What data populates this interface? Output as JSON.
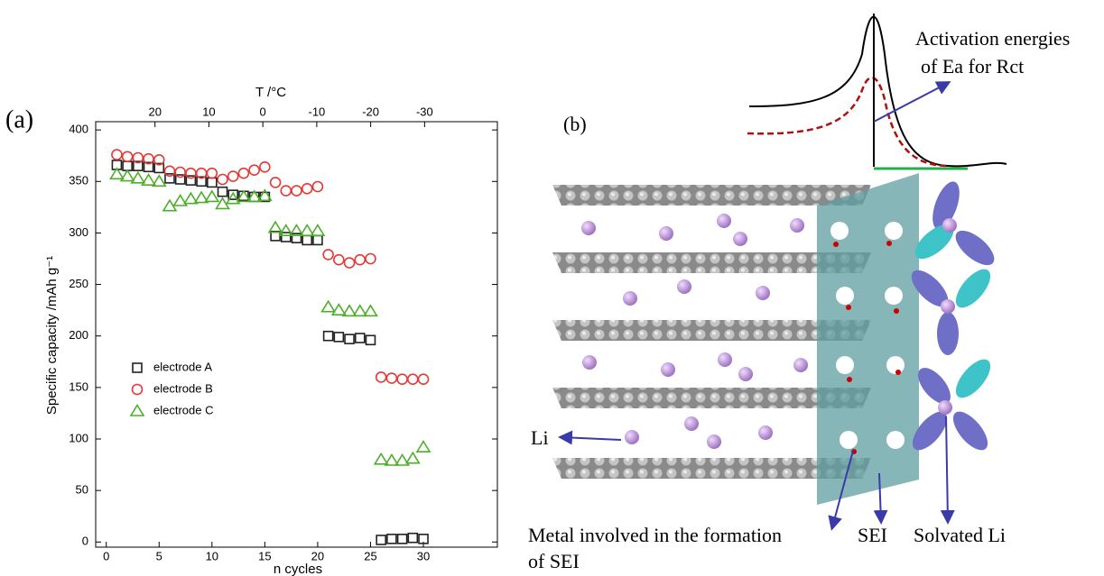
{
  "chart_data": {
    "type": "scatter",
    "panel_label": "(a)",
    "x_label": "n cycles",
    "y_label": "Specific capacity /mAh g⁻¹",
    "x2_label": "T /°C",
    "x": [
      1,
      2,
      3,
      4,
      5,
      6,
      7,
      8,
      9,
      10,
      11,
      12,
      13,
      14,
      15,
      16,
      17,
      18,
      19,
      20,
      21,
      22,
      23,
      24,
      25,
      26,
      27,
      28,
      29,
      30
    ],
    "series": [
      {
        "name": "electrode A",
        "color": "#222222",
        "marker": "square",
        "values": [
          366,
          365,
          365,
          364,
          363,
          353,
          352,
          351,
          350,
          349,
          340,
          337,
          336,
          335,
          335,
          297,
          296,
          295,
          293,
          293,
          200,
          199,
          197,
          198,
          196,
          2,
          3,
          3,
          4,
          3
        ]
      },
      {
        "name": "electrode B",
        "color": "#e53935",
        "marker": "circle",
        "values": [
          376,
          374,
          373,
          372,
          371,
          360,
          359,
          358,
          358,
          358,
          352,
          355,
          358,
          361,
          364,
          349,
          341,
          341,
          343,
          345,
          279,
          274,
          271,
          274,
          275,
          160,
          159,
          158,
          158,
          158
        ]
      },
      {
        "name": "electrode C",
        "color": "#4caf2a",
        "marker": "triangle",
        "values": [
          357,
          355,
          353,
          351,
          350,
          326,
          331,
          333,
          334,
          335,
          328,
          333,
          335,
          335,
          336,
          305,
          302,
          302,
          302,
          302,
          228,
          225,
          224,
          224,
          224,
          80,
          79,
          79,
          81,
          92
        ]
      }
    ],
    "xlim": [
      -1,
      37
    ],
    "xticks": [
      0,
      5,
      10,
      15,
      20,
      25,
      30
    ],
    "ylim": [
      -5,
      408
    ],
    "yticks": [
      0,
      50,
      100,
      150,
      200,
      250,
      300,
      350,
      400
    ],
    "x2lim": [
      31,
      -43.5
    ],
    "x2ticks": [
      20,
      10,
      0,
      -10,
      -20,
      -30
    ],
    "legend": "center left"
  },
  "diagram": {
    "label": "(b)",
    "peak_annotation": [
      "Activation energies",
      "of Ea for Rct"
    ],
    "li_label": "Li",
    "metal_label": [
      "Metal involved in the formation",
      "of SEI"
    ],
    "sei_label": "SEI",
    "solvated_label": "Solvated Li"
  }
}
